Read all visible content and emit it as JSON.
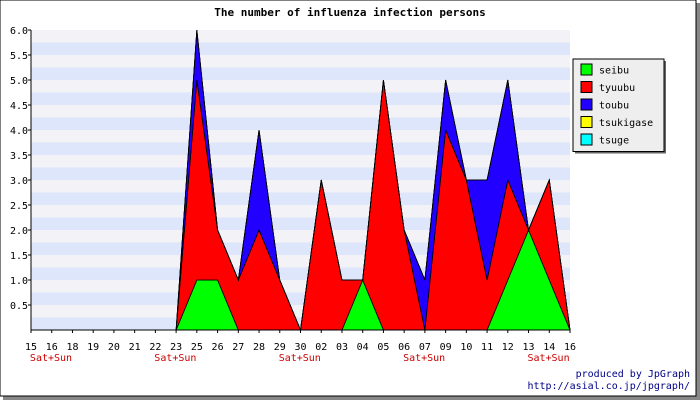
{
  "chart_data": {
    "type": "area",
    "stacked": true,
    "title": "The number of influenza infection persons",
    "xlabel": "",
    "ylabel": "",
    "ylim": [
      0,
      6
    ],
    "yticks": [
      "6.0",
      "5.5",
      "5.0",
      "4.5",
      "4.0",
      "3.5",
      "3.0",
      "2.5",
      "2.0",
      "1.5",
      "1.0",
      "0.5"
    ],
    "x": [
      "15",
      "16",
      "18",
      "19",
      "20",
      "21",
      "22",
      "23",
      "25",
      "26",
      "27",
      "28",
      "29",
      "30",
      "02",
      "03",
      "04",
      "05",
      "06",
      "07",
      "09",
      "10",
      "11",
      "12",
      "13",
      "14",
      "16"
    ],
    "weekend_label": "Sat+Sun",
    "weekend_ticks": [
      "15",
      "22",
      "29",
      "06",
      "13"
    ],
    "series": [
      {
        "name": "seibu",
        "color": "#00ff00",
        "values": [
          0,
          0,
          0,
          0,
          0,
          0,
          0,
          0,
          1,
          1,
          0,
          0,
          0,
          0,
          0,
          0,
          1,
          0,
          0,
          0,
          0,
          0,
          0,
          1,
          2,
          1,
          0
        ]
      },
      {
        "name": "tyuubu",
        "color": "#ff0000",
        "values": [
          0,
          0,
          0,
          0,
          0,
          0,
          0,
          0,
          4,
          1,
          1,
          2,
          1,
          0,
          3,
          1,
          0,
          5,
          2,
          0,
          4,
          3,
          1,
          2,
          0,
          2,
          0
        ]
      },
      {
        "name": "toubu",
        "color": "#2200ff",
        "values": [
          0,
          0,
          0,
          0,
          0,
          0,
          0,
          0,
          1,
          0,
          0,
          2,
          0,
          0,
          0,
          0,
          0,
          0,
          0,
          1,
          1,
          0,
          2,
          2,
          0,
          0,
          0
        ]
      },
      {
        "name": "tsukigase",
        "color": "#ffff00",
        "values": [
          0,
          0,
          0,
          0,
          0,
          0,
          0,
          0,
          0,
          0,
          0,
          0,
          0,
          0,
          0,
          0,
          0,
          0,
          0,
          0,
          0,
          0,
          0,
          0,
          0,
          0,
          0
        ]
      },
      {
        "name": "tsuge",
        "color": "#00ffff",
        "values": [
          0,
          0,
          0,
          0,
          0,
          0,
          0,
          0,
          0,
          0,
          0,
          0,
          0,
          0,
          0,
          0,
          0,
          0,
          0,
          0,
          0,
          0,
          0,
          0,
          0,
          0,
          0
        ]
      }
    ],
    "legend": "right",
    "grid": true,
    "band_colors": [
      "#dde6fb",
      "#f3f3f7"
    ]
  },
  "footer": {
    "line1": "produced by JpGraph",
    "line2": "http://asial.co.jp/jpgraph/",
    "color": "#000088"
  }
}
